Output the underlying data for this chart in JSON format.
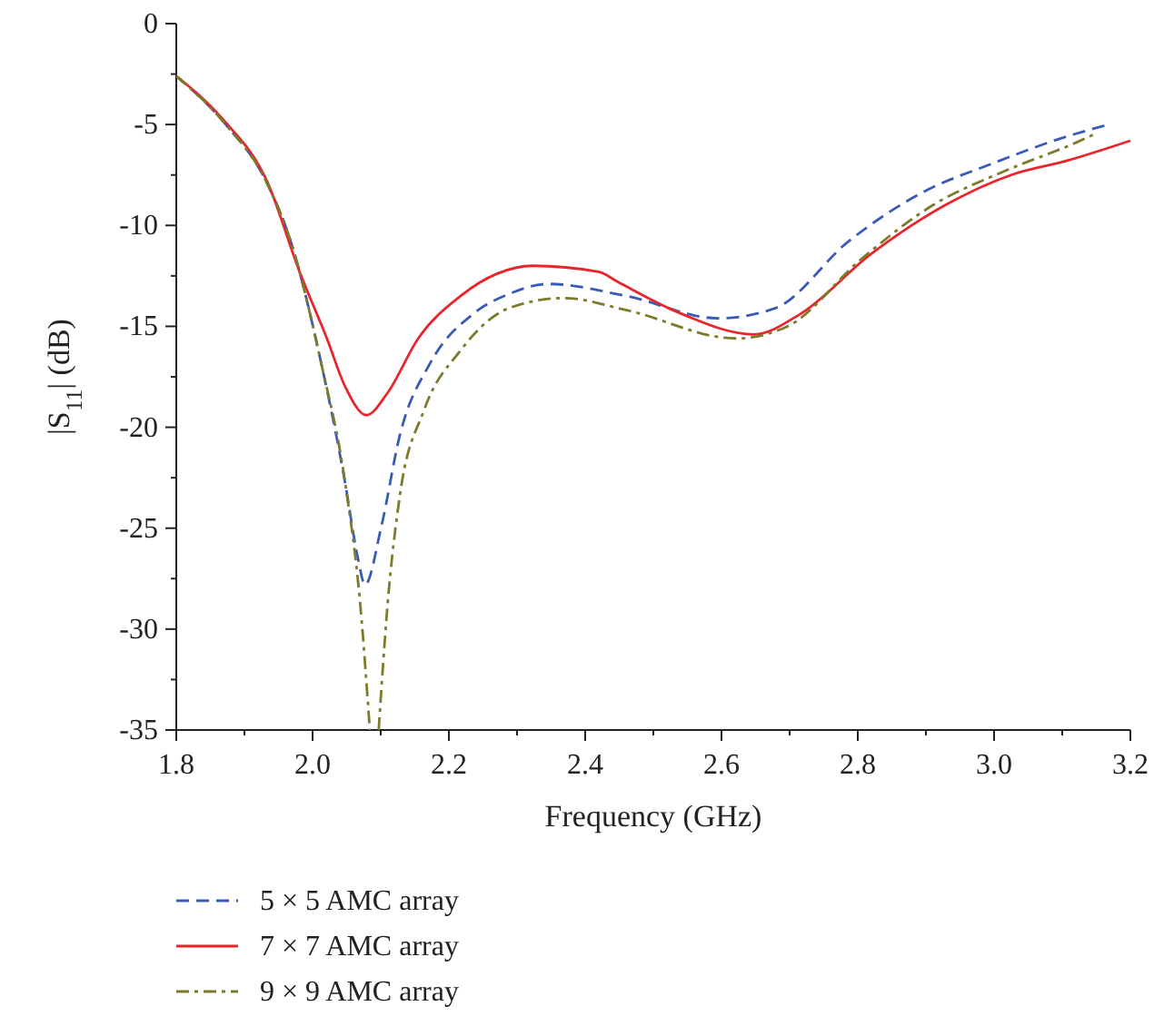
{
  "chart_data": {
    "type": "line",
    "xlabel": "Frequency (GHz)",
    "ylabel": "|S$_{11}$| (dB)",
    "xlim": [
      1.8,
      3.2
    ],
    "ylim": [
      -35,
      0
    ],
    "xticks": [
      1.8,
      {
        "value": 1.9,
        "label": null
      },
      "2.0",
      {
        "value": 2.1,
        "label": null
      },
      2.2,
      {
        "value": 2.3,
        "label": null
      },
      2.4,
      {
        "value": 2.5,
        "label": null
      },
      2.6,
      {
        "value": 2.7,
        "label": null
      },
      2.8,
      {
        "value": 2.9,
        "label": null
      },
      {
        "value": 3.0,
        "label": "3.0"
      },
      {
        "value": 3.1,
        "label": null
      },
      3.2
    ],
    "yticks": [
      -35,
      {
        "value": -32.5,
        "label": null
      },
      -30,
      {
        "value": -27.5,
        "label": null
      },
      -25,
      {
        "value": -22.5,
        "label": null
      },
      -20,
      {
        "value": -17.5,
        "label": null
      },
      -15,
      {
        "value": -12.5,
        "label": null
      },
      -10,
      {
        "value": -7.5,
        "label": null
      },
      -5,
      {
        "value": -2.5,
        "label": null
      },
      0
    ],
    "grid": false,
    "legend": "bottom",
    "marker": "none",
    "series": [
      {
        "name": "5 × 5 AMC array",
        "color": "#3a5bb5",
        "line_style": "dashed",
        "x": [
          1.8,
          1.87,
          1.933,
          1.968,
          2.0125,
          2.048,
          2.066,
          2.077,
          2.101,
          2.128,
          2.173,
          2.235,
          2.288,
          2.346,
          2.461,
          2.595,
          2.679,
          2.786,
          2.893,
          3.0,
          3.106,
          3.168
        ],
        "values": [
          -2.6,
          -4.9,
          -7.9,
          -10.8,
          -16.8,
          -22.8,
          -26.4,
          -27.8,
          -24.9,
          -20.4,
          -16.8,
          -14.4,
          -13.4,
          -12.9,
          -13.5,
          -14.6,
          -14.1,
          -10.8,
          -8.4,
          -6.9,
          -5.6,
          -5.0
        ]
      },
      {
        "name": "7 × 7 AMC array",
        "color": "#e8262b",
        "line_style": "solid",
        "x": [
          1.8,
          1.87,
          1.933,
          1.981,
          2.021,
          2.048,
          2.079,
          2.11,
          2.155,
          2.217,
          2.27,
          2.323,
          2.42,
          2.448,
          2.536,
          2.648,
          2.715,
          2.82,
          2.928,
          3.025,
          3.106,
          3.2
        ],
        "values": [
          -2.6,
          -4.8,
          -7.8,
          -12.3,
          -15.6,
          -18.0,
          -19.4,
          -18.3,
          -15.6,
          -13.5,
          -12.4,
          -12.0,
          -12.3,
          -12.8,
          -14.3,
          -15.4,
          -14.4,
          -11.4,
          -9.0,
          -7.5,
          -6.8,
          -5.8
        ]
      },
      {
        "name": "9 × 9 AMC array",
        "color": "#7d7a2a",
        "line_style": "dashdot",
        "x": [
          1.8,
          1.87,
          1.933,
          1.968,
          2.0125,
          2.048,
          2.07,
          2.084,
          2.09,
          2.097,
          2.11,
          2.128,
          2.163,
          2.217,
          2.288,
          2.368,
          2.461,
          2.621,
          2.697,
          2.804,
          2.91,
          3.016,
          3.12,
          3.146
        ],
        "values": [
          -2.6,
          -4.9,
          -7.9,
          -10.8,
          -16.8,
          -22.8,
          -28.8,
          -35,
          null,
          -35,
          -28.8,
          -23.4,
          -19.2,
          -16.2,
          -14.1,
          -13.6,
          -14.2,
          -15.6,
          -15.0,
          -11.7,
          -9.0,
          -7.3,
          -5.9,
          -5.5
        ]
      }
    ]
  }
}
